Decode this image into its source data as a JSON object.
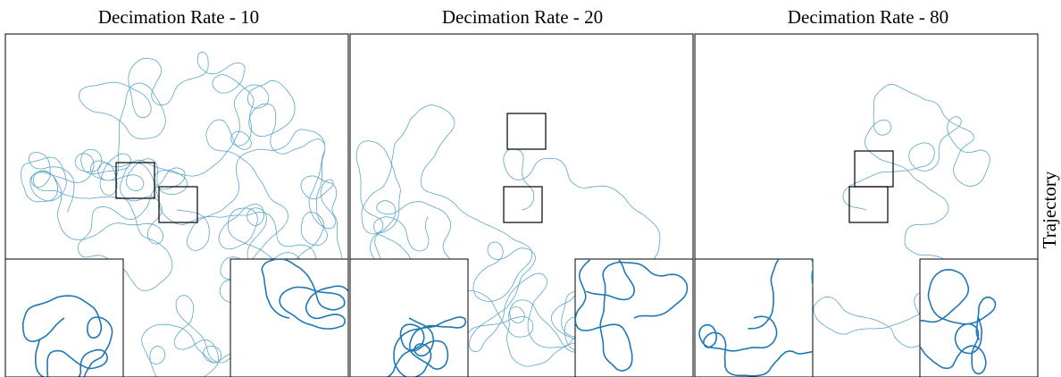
{
  "panels": [
    {
      "title": "Decimation Rate - 10"
    },
    {
      "title": "Decimation Rate - 20"
    },
    {
      "title": "Decimation Rate - 80"
    }
  ],
  "side_label": "Trajectory"
}
